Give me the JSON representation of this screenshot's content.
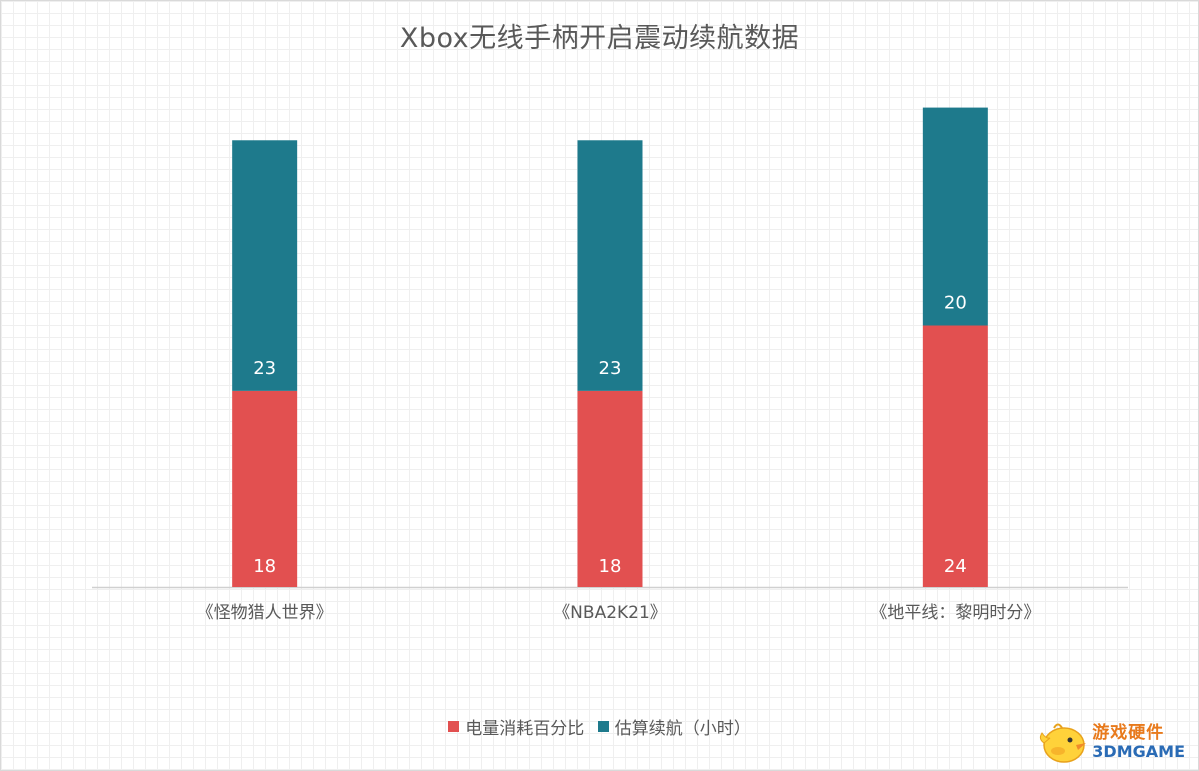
{
  "chart_data": {
    "type": "bar",
    "stacked": true,
    "title": "Xbox无线手柄开启震动续航数据",
    "categories": [
      "《怪物猎人世界》",
      "《NBA2K21》",
      "《地平线：黎明时分》"
    ],
    "series": [
      {
        "name": "电量消耗百分比",
        "values": [
          18,
          18,
          24
        ],
        "color": "#e25050"
      },
      {
        "name": "估算续航（小时）",
        "values": [
          23,
          23,
          20
        ],
        "color": "#1e7a8c"
      }
    ],
    "ylim": [
      0,
      48
    ],
    "grid": false,
    "legend_position": "bottom"
  },
  "watermark": {
    "line1": "游戏硬件",
    "line2": "3DMGAME"
  }
}
